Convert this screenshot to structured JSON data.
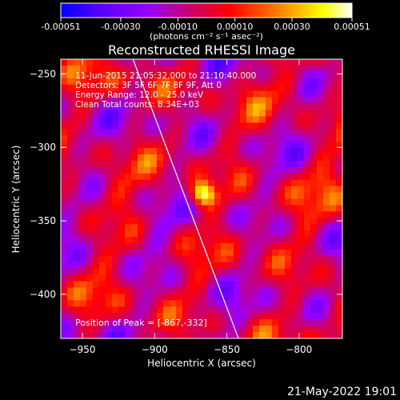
{
  "colorbar": {
    "tick_labels": [
      "-0.00051",
      "-0.00030",
      "-0.00010",
      "0.00010",
      "0.00030",
      "0.00051"
    ],
    "tick_values": [
      -0.00051,
      -0.0003,
      -0.0001,
      0.0001,
      0.0003,
      0.00051
    ],
    "range": [
      -0.00051,
      0.00051
    ],
    "units_label": "(photons cm⁻² s⁻¹ asec⁻²)",
    "colors": [
      "#0000ff",
      "#5a00ff",
      "#9900ff",
      "#cc0066",
      "#ff0000",
      "#ff8000",
      "#ffff00",
      "#ffffff"
    ]
  },
  "chart_data": {
    "type": "heatmap",
    "title": "Reconstructed RHESSI Image",
    "xlabel": "Heliocentric X (arcsec)",
    "ylabel": "Heliocentric Y (arcsec)",
    "xlim": [
      -965,
      -770
    ],
    "ylim": [
      -430,
      -240
    ],
    "x_ticks": [
      -950,
      -900,
      -850,
      -800
    ],
    "x_tick_labels": [
      "−950",
      "−900",
      "−850",
      "−800"
    ],
    "y_ticks": [
      -250,
      -300,
      -350,
      -400
    ],
    "y_tick_labels": [
      "−250",
      "−300",
      "−350",
      "−400"
    ],
    "annotations": [
      "11-Jun-2015 21:05:32.000 to 21:10:40.000",
      "Detectors: 3F 5F 6F 7F 8F 9F, Att 0",
      "Energy Range: 12.0 - 25.0 keV",
      "Clean     Total counts: 8.34E+03"
    ],
    "peak_label": "Position of Peak = [-867,-332]",
    "peak": {
      "x": -867,
      "y": -332
    },
    "limb_line": [
      [
        -915,
        -240
      ],
      [
        -842,
        -430
      ]
    ],
    "grid": false
  },
  "footer": {
    "date": "21-May-2022 19:01"
  }
}
